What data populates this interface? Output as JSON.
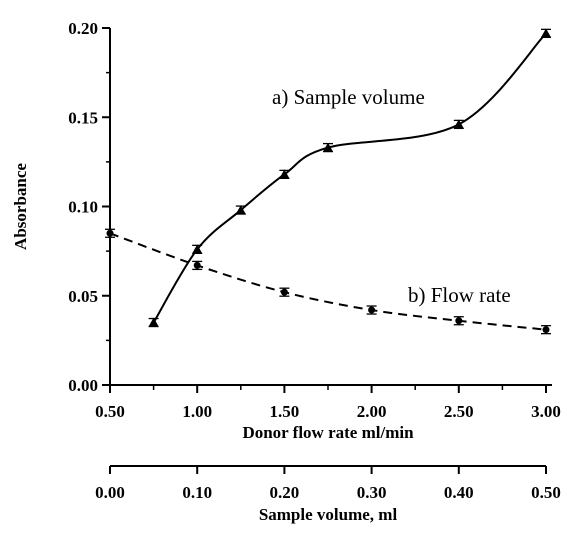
{
  "chart_data": {
    "type": "line",
    "ylabel": "Absorbance",
    "ylim": [
      0,
      0.2
    ],
    "yticks": [
      "0.00",
      "0.05",
      "0.10",
      "0.15",
      "0.20"
    ],
    "x_axes": [
      {
        "id": "flow",
        "label": "Donor flow rate ml/min",
        "lim": [
          0.5,
          3.0
        ],
        "ticks": [
          "0.50",
          "1.00",
          "1.50",
          "2.00",
          "2.50",
          "3.00"
        ]
      },
      {
        "id": "volume",
        "label": "Sample volume, ml",
        "lim": [
          0.0,
          0.5
        ],
        "ticks": [
          "0.00",
          "0.10",
          "0.20",
          "0.30",
          "0.40",
          "0.50"
        ]
      }
    ],
    "series": [
      {
        "name": "a) Sample volume",
        "x_axis": "volume",
        "style": "solid",
        "marker": "triangle",
        "x": [
          0.05,
          0.1,
          0.15,
          0.2,
          0.25,
          0.4,
          0.5
        ],
        "y": [
          0.035,
          0.076,
          0.098,
          0.118,
          0.133,
          0.146,
          0.197
        ]
      },
      {
        "name": "b) Flow rate",
        "x_axis": "flow",
        "style": "dashed",
        "marker": "dot",
        "x": [
          0.5,
          1.0,
          1.5,
          2.0,
          2.5,
          3.0
        ],
        "y": [
          0.085,
          0.067,
          0.052,
          0.042,
          0.036,
          0.031
        ]
      }
    ],
    "grid": false,
    "legend": "inline labels"
  }
}
